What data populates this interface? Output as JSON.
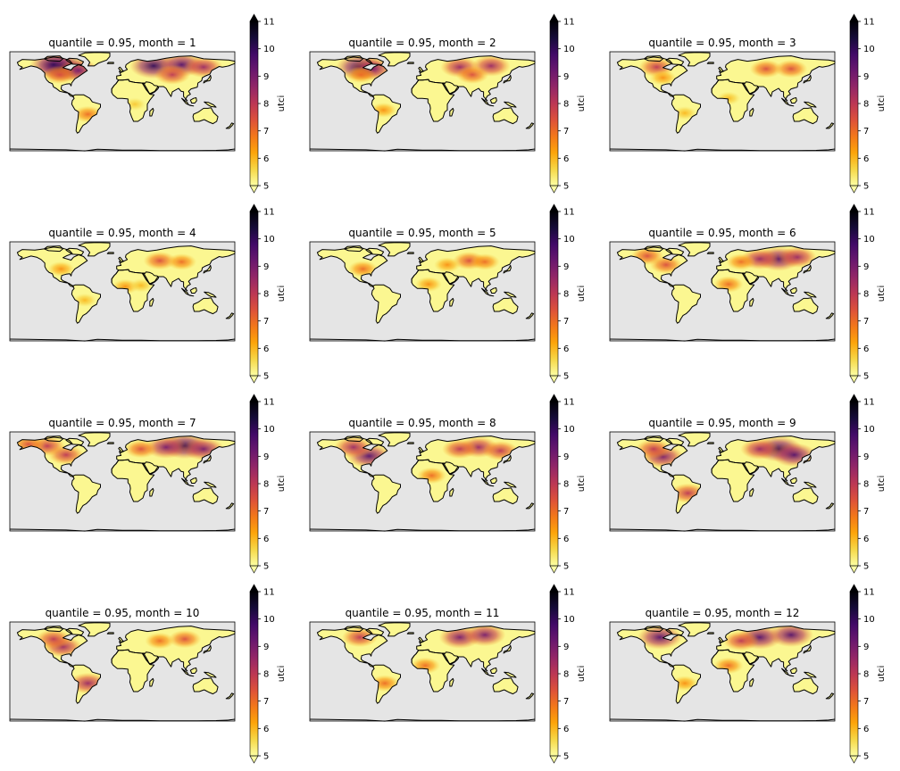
{
  "figure": {
    "background": "#ffffff"
  },
  "chart_data": {
    "type": "heatmap",
    "layout": "4x3 grid of map panels",
    "projection": "PlateCarree world map with coastlines",
    "ocean_color": "#e5e5e5",
    "coast_color": "#000000",
    "colormap": "inferno_r",
    "colormap_stops": [
      "#fcffa4",
      "#f6d746",
      "#fca50a",
      "#f37819",
      "#dd513a",
      "#bc3754",
      "#932667",
      "#6a176e",
      "#420a68",
      "#160b39",
      "#000004"
    ],
    "colorbar": {
      "label": "utci",
      "ticks": [
        5,
        6,
        7,
        8,
        9,
        10,
        11
      ],
      "tick_labels": [
        "5",
        "6",
        "7",
        "8",
        "9",
        "10",
        "11"
      ],
      "vmin": 5,
      "vmax": 11,
      "extend": "both"
    },
    "panels": [
      {
        "title": "quantile = 0.95, month = 1",
        "quantile": 0.95,
        "month": 1,
        "hotspots": [
          {
            "lon": -95,
            "lat": 57,
            "value": 10.5
          },
          {
            "lon": -110,
            "lat": 62,
            "value": 10
          },
          {
            "lon": -70,
            "lat": 52,
            "value": 9
          },
          {
            "lon": 50,
            "lat": 60,
            "value": 10
          },
          {
            "lon": 95,
            "lat": 62,
            "value": 9.5
          },
          {
            "lon": 130,
            "lat": 58,
            "value": 8.5
          },
          {
            "lon": 80,
            "lat": 45,
            "value": 8
          },
          {
            "lon": -100,
            "lat": 45,
            "value": 7.5
          },
          {
            "lon": -55,
            "lat": -22,
            "value": 7
          },
          {
            "lon": 20,
            "lat": -5,
            "value": 5.8
          }
        ]
      },
      {
        "title": "quantile = 0.95, month = 2",
        "quantile": 0.95,
        "month": 2,
        "hotspots": [
          {
            "lon": -100,
            "lat": 58,
            "value": 10
          },
          {
            "lon": -80,
            "lat": 55,
            "value": 9
          },
          {
            "lon": 60,
            "lat": 58,
            "value": 8.5
          },
          {
            "lon": 110,
            "lat": 60,
            "value": 8.5
          },
          {
            "lon": 80,
            "lat": 45,
            "value": 7.5
          },
          {
            "lon": -98,
            "lat": 45,
            "value": 7
          },
          {
            "lon": -62,
            "lat": -15,
            "value": 6.5
          }
        ]
      },
      {
        "title": "quantile = 0.95, month = 3",
        "quantile": 0.95,
        "month": 3,
        "hotspots": [
          {
            "lon": -105,
            "lat": 58,
            "value": 8
          },
          {
            "lon": 70,
            "lat": 55,
            "value": 7.5
          },
          {
            "lon": 110,
            "lat": 55,
            "value": 7.5
          },
          {
            "lon": -95,
            "lat": 40,
            "value": 6.5
          },
          {
            "lon": 10,
            "lat": 5,
            "value": 6
          },
          {
            "lon": -60,
            "lat": -20,
            "value": 6
          }
        ]
      },
      {
        "title": "quantile = 0.95, month = 4",
        "quantile": 0.95,
        "month": 4,
        "hotspots": [
          {
            "lon": 60,
            "lat": 52,
            "value": 7.5
          },
          {
            "lon": 95,
            "lat": 50,
            "value": 7
          },
          {
            "lon": -98,
            "lat": 38,
            "value": 6.5
          },
          {
            "lon": 5,
            "lat": 8,
            "value": 6.5
          },
          {
            "lon": 30,
            "lat": 10,
            "value": 6
          },
          {
            "lon": -60,
            "lat": -15,
            "value": 6
          }
        ]
      },
      {
        "title": "quantile = 0.95, month = 5",
        "quantile": 0.95,
        "month": 5,
        "hotspots": [
          {
            "lon": 75,
            "lat": 52,
            "value": 7.5
          },
          {
            "lon": 100,
            "lat": 50,
            "value": 7
          },
          {
            "lon": -95,
            "lat": 38,
            "value": 7
          },
          {
            "lon": 10,
            "lat": 12,
            "value": 6.5
          },
          {
            "lon": 40,
            "lat": 45,
            "value": 6.5
          }
        ]
      },
      {
        "title": "quantile = 0.95, month = 6",
        "quantile": 0.95,
        "month": 6,
        "hotspots": [
          {
            "lon": 90,
            "lat": 55,
            "value": 9.5
          },
          {
            "lon": 60,
            "lat": 55,
            "value": 8.5
          },
          {
            "lon": 120,
            "lat": 58,
            "value": 8.5
          },
          {
            "lon": -120,
            "lat": 60,
            "value": 7.5
          },
          {
            "lon": -90,
            "lat": 45,
            "value": 7.5
          },
          {
            "lon": 10,
            "lat": 12,
            "value": 7
          },
          {
            "lon": 30,
            "lat": 50,
            "value": 7
          }
        ]
      },
      {
        "title": "quantile = 0.95, month = 7",
        "quantile": 0.95,
        "month": 7,
        "hotspots": [
          {
            "lon": 100,
            "lat": 60,
            "value": 10
          },
          {
            "lon": 70,
            "lat": 58,
            "value": 9
          },
          {
            "lon": 130,
            "lat": 55,
            "value": 9
          },
          {
            "lon": -120,
            "lat": 60,
            "value": 8
          },
          {
            "lon": -90,
            "lat": 45,
            "value": 8
          },
          {
            "lon": -150,
            "lat": 63,
            "value": 7.5
          },
          {
            "lon": 30,
            "lat": 55,
            "value": 7.5
          }
        ]
      },
      {
        "title": "quantile = 0.95, month = 8",
        "quantile": 0.95,
        "month": 8,
        "hotspots": [
          {
            "lon": -85,
            "lat": 43,
            "value": 9.5
          },
          {
            "lon": -110,
            "lat": 58,
            "value": 8.5
          },
          {
            "lon": 90,
            "lat": 58,
            "value": 8.5
          },
          {
            "lon": 60,
            "lat": 55,
            "value": 8
          },
          {
            "lon": 125,
            "lat": 52,
            "value": 8
          },
          {
            "lon": 15,
            "lat": 10,
            "value": 7
          }
        ]
      },
      {
        "title": "quantile = 0.95, month = 9",
        "quantile": 0.95,
        "month": 9,
        "hotspots": [
          {
            "lon": 90,
            "lat": 55,
            "value": 10
          },
          {
            "lon": 115,
            "lat": 45,
            "value": 9.5
          },
          {
            "lon": -95,
            "lat": 42,
            "value": 9
          },
          {
            "lon": -110,
            "lat": 55,
            "value": 8
          },
          {
            "lon": 60,
            "lat": 55,
            "value": 8.5
          },
          {
            "lon": -55,
            "lat": -20,
            "value": 8
          }
        ]
      },
      {
        "title": "quantile = 0.95, month = 10",
        "quantile": 0.95,
        "month": 10,
        "hotspots": [
          {
            "lon": -95,
            "lat": 42,
            "value": 8.5
          },
          {
            "lon": -110,
            "lat": 55,
            "value": 8
          },
          {
            "lon": -55,
            "lat": -20,
            "value": 8.5
          },
          {
            "lon": 100,
            "lat": 55,
            "value": 7.5
          },
          {
            "lon": 60,
            "lat": 52,
            "value": 7
          }
        ]
      },
      {
        "title": "quantile = 0.95, month = 11",
        "quantile": 0.95,
        "month": 11,
        "hotspots": [
          {
            "lon": 60,
            "lat": 58,
            "value": 9
          },
          {
            "lon": 100,
            "lat": 62,
            "value": 9
          },
          {
            "lon": -100,
            "lat": 58,
            "value": 8
          },
          {
            "lon": 5,
            "lat": 10,
            "value": 7
          },
          {
            "lon": -60,
            "lat": -20,
            "value": 7
          }
        ]
      },
      {
        "title": "quantile = 0.95, month = 12",
        "quantile": 0.95,
        "month": 12,
        "hotspots": [
          {
            "lon": -100,
            "lat": 58,
            "value": 9.5
          },
          {
            "lon": 60,
            "lat": 58,
            "value": 9.5
          },
          {
            "lon": 110,
            "lat": 62,
            "value": 9.5
          },
          {
            "lon": 30,
            "lat": 52,
            "value": 8
          },
          {
            "lon": 10,
            "lat": 10,
            "value": 7
          },
          {
            "lon": -60,
            "lat": -20,
            "value": 6.5
          }
        ]
      }
    ]
  }
}
